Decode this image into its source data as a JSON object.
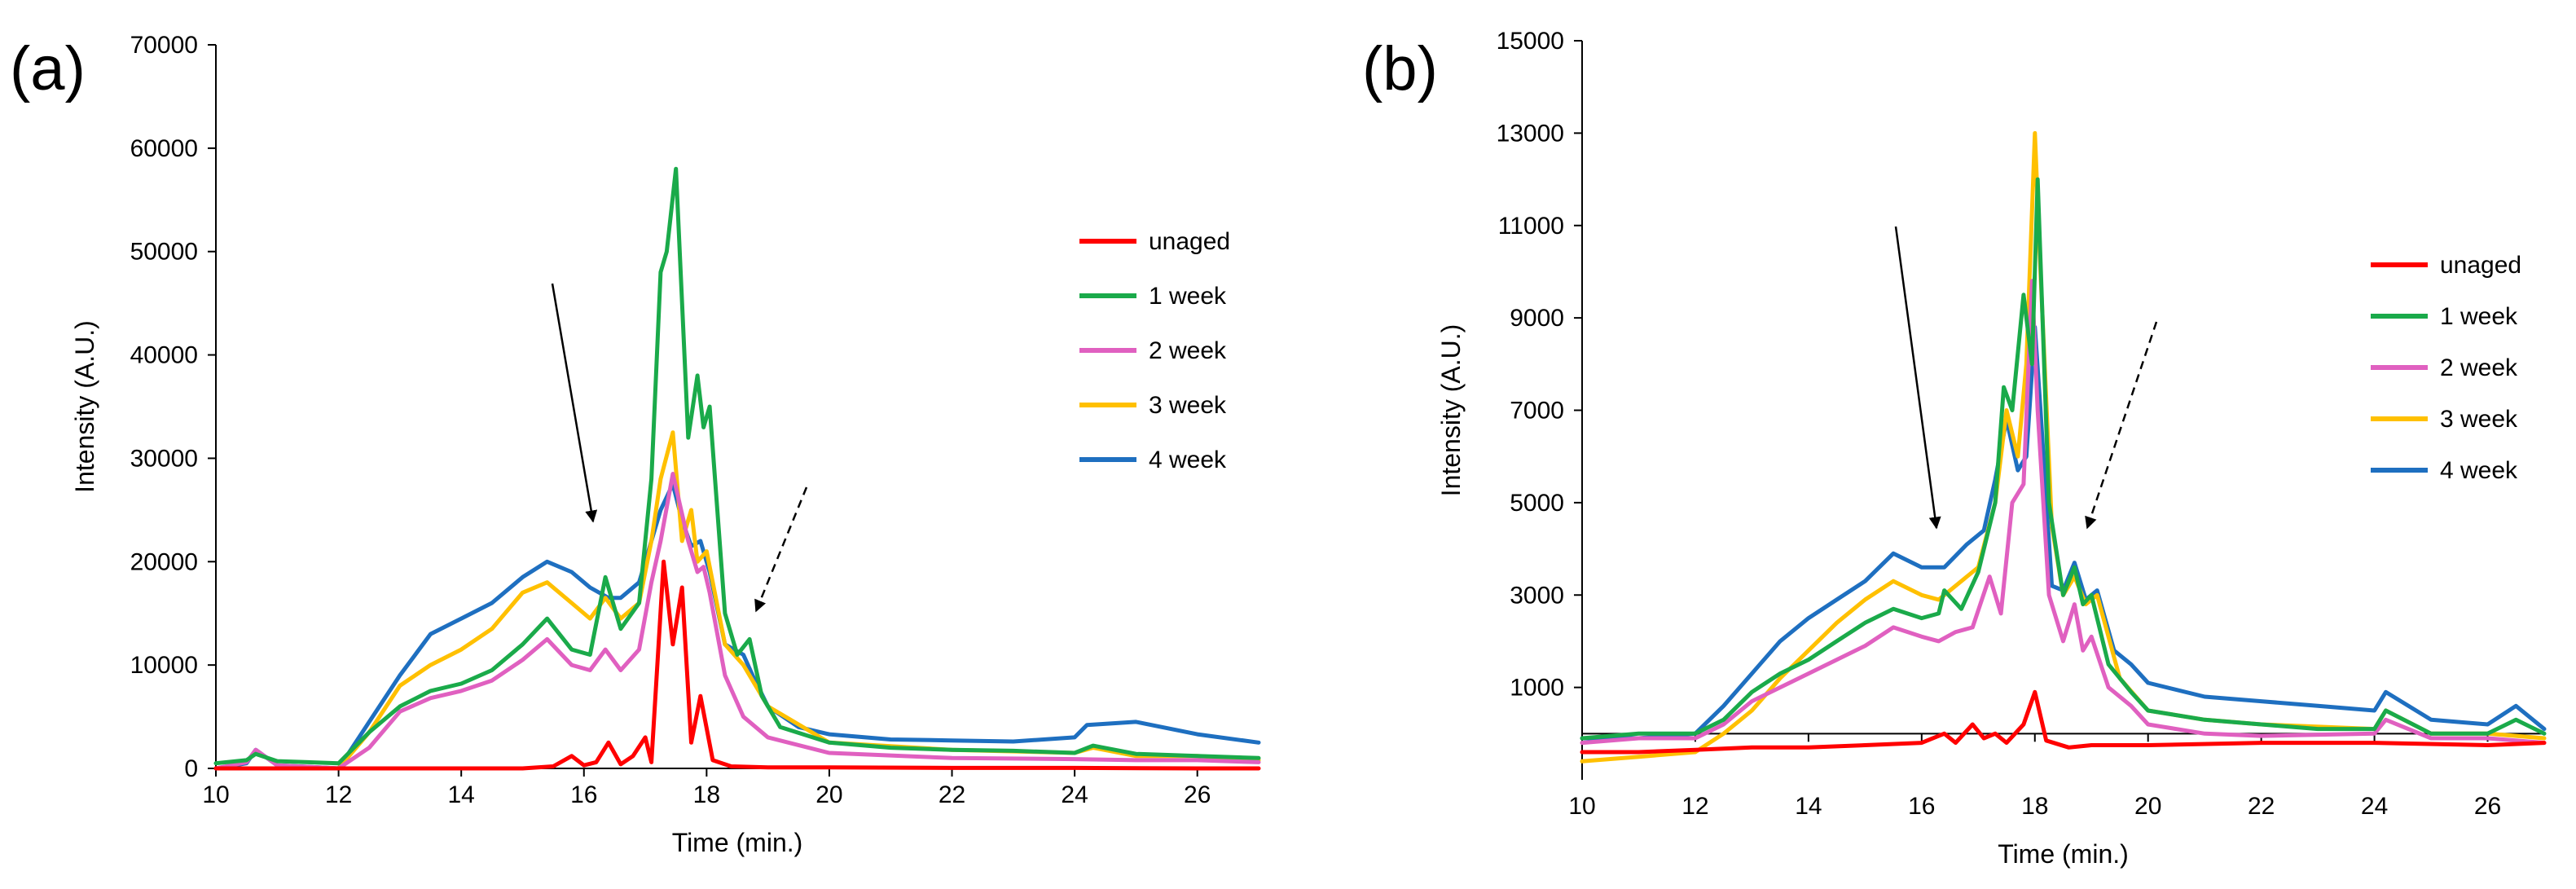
{
  "figure": {
    "legend_position": "right"
  },
  "chart_data": [
    {
      "type": "line",
      "panel_label": "(a)",
      "xlabel": "Time (min.)",
      "ylabel": "Intensity (A.U.)",
      "xlim": [
        10,
        27
      ],
      "ylim": [
        0,
        70000
      ],
      "xticks": [
        10,
        12,
        14,
        16,
        18,
        20,
        22,
        24,
        26
      ],
      "yticks": [
        0,
        10000,
        20000,
        30000,
        40000,
        50000,
        60000,
        70000
      ],
      "grid": false,
      "legend": "right",
      "series": [
        {
          "name": "unaged",
          "color": "#ff0000",
          "x": [
            10,
            11,
            12,
            13,
            14,
            15,
            15.5,
            15.8,
            16.0,
            16.2,
            16.4,
            16.6,
            16.8,
            17.0,
            17.1,
            17.3,
            17.45,
            17.6,
            17.75,
            17.9,
            18.1,
            18.4,
            19,
            20,
            22,
            24,
            26,
            27
          ],
          "y": [
            0,
            0,
            0,
            0,
            0,
            0,
            200,
            1200,
            300,
            600,
            2500,
            400,
            1200,
            3000,
            600,
            20000,
            12000,
            17500,
            2500,
            7000,
            800,
            200,
            100,
            100,
            50,
            50,
            0,
            0
          ]
        },
        {
          "name": "1 week",
          "color": "#1aaa4a",
          "x": [
            10,
            10.5,
            10.65,
            11,
            12,
            12.5,
            13,
            13.5,
            14,
            14.5,
            15,
            15.4,
            15.8,
            16.1,
            16.35,
            16.6,
            16.9,
            17.1,
            17.25,
            17.35,
            17.5,
            17.7,
            17.85,
            17.95,
            18.05,
            18.3,
            18.5,
            18.7,
            18.9,
            19.2,
            20,
            21,
            22,
            23,
            24,
            24.3,
            25,
            26,
            27
          ],
          "y": [
            500,
            800,
            1400,
            700,
            500,
            3500,
            6000,
            7500,
            8200,
            9500,
            12000,
            14500,
            11500,
            11000,
            18500,
            13500,
            16000,
            28000,
            48000,
            50000,
            58000,
            32000,
            38000,
            33000,
            35000,
            15000,
            11000,
            12500,
            7000,
            4000,
            2500,
            2000,
            1800,
            1700,
            1500,
            2200,
            1400,
            1200,
            1000
          ]
        },
        {
          "name": "2 week",
          "color": "#e060c0",
          "x": [
            10,
            10.5,
            10.65,
            11,
            12,
            12.5,
            13,
            13.5,
            14,
            14.5,
            15,
            15.4,
            15.8,
            16.1,
            16.35,
            16.6,
            16.9,
            17.1,
            17.25,
            17.45,
            17.7,
            17.85,
            17.95,
            18.05,
            18.3,
            18.6,
            19,
            20,
            22,
            24,
            25,
            26,
            27
          ],
          "y": [
            0,
            600,
            1800,
            300,
            0,
            2000,
            5500,
            6800,
            7500,
            8500,
            10500,
            12500,
            10000,
            9500,
            11500,
            9500,
            11500,
            18000,
            22000,
            28500,
            22000,
            19000,
            19500,
            17000,
            9000,
            5000,
            3000,
            1500,
            1000,
            900,
            800,
            800,
            600
          ]
        },
        {
          "name": "3 week",
          "color": "#ffc000",
          "x": [
            10,
            11,
            12,
            12.5,
            13,
            13.5,
            14,
            14.5,
            15,
            15.4,
            15.8,
            16.1,
            16.35,
            16.6,
            16.9,
            17.1,
            17.25,
            17.45,
            17.6,
            17.75,
            17.85,
            18.0,
            18.3,
            18.6,
            19,
            20,
            22,
            24,
            24.3,
            25,
            26,
            27
          ],
          "y": [
            0,
            0,
            0,
            3500,
            8000,
            10000,
            11500,
            13500,
            17000,
            18000,
            16000,
            14500,
            16500,
            14500,
            16000,
            22000,
            28000,
            32500,
            22000,
            25000,
            20000,
            21000,
            12000,
            10000,
            6000,
            2500,
            1800,
            1500,
            2000,
            1200,
            1200,
            800
          ]
        },
        {
          "name": "4 week",
          "color": "#1e6fc0",
          "x": [
            10,
            10.5,
            10.65,
            11,
            12,
            12.5,
            13,
            13.5,
            14,
            14.5,
            15,
            15.4,
            15.8,
            16.1,
            16.4,
            16.6,
            16.9,
            17.1,
            17.25,
            17.45,
            17.6,
            17.75,
            17.9,
            18.05,
            18.3,
            18.6,
            18.75,
            19,
            19.5,
            20,
            21,
            22,
            23,
            24,
            24.2,
            25,
            26,
            27
          ],
          "y": [
            0,
            500,
            1800,
            300,
            0,
            4500,
            9000,
            13000,
            14500,
            16000,
            18500,
            20000,
            19000,
            17500,
            16500,
            16500,
            18000,
            22000,
            25000,
            27500,
            24000,
            21500,
            22000,
            19000,
            12000,
            11000,
            9000,
            6000,
            4000,
            3300,
            2800,
            2700,
            2600,
            3000,
            4200,
            4500,
            3300,
            2500
          ]
        }
      ]
    },
    {
      "type": "line",
      "panel_label": "(b)",
      "xlabel": "Time (min.)",
      "ylabel": "Intensity (A.U.)",
      "xlim": [
        10,
        27
      ],
      "ylim": [
        -1000,
        15000
      ],
      "x_axis_crosses_at": 0,
      "xticks": [
        10,
        12,
        14,
        16,
        18,
        20,
        22,
        24,
        26
      ],
      "xtick_labels": [
        "10",
        "12",
        "14",
        "16",
        "18",
        "20",
        "22",
        "24",
        "26"
      ],
      "yticks": [
        1000,
        3000,
        5000,
        7000,
        9000,
        11000,
        13000,
        15000
      ],
      "grid": false,
      "legend": "right",
      "series": [
        {
          "name": "unaged",
          "color": "#ff0000",
          "x": [
            10,
            11,
            12,
            13,
            14,
            15,
            16,
            16.4,
            16.6,
            16.9,
            17.1,
            17.3,
            17.5,
            17.8,
            18.0,
            18.2,
            18.6,
            19,
            20,
            22,
            24,
            26,
            27
          ],
          "y": [
            -400,
            -400,
            -350,
            -300,
            -300,
            -250,
            -200,
            0,
            -200,
            200,
            -100,
            0,
            -200,
            200,
            900,
            -150,
            -300,
            -250,
            -250,
            -200,
            -200,
            -250,
            -200
          ]
        },
        {
          "name": "1 week",
          "color": "#1aaa4a",
          "x": [
            10,
            11,
            12,
            12.5,
            13,
            13.5,
            14,
            14.5,
            15,
            15.5,
            16,
            16.3,
            16.4,
            16.7,
            17,
            17.3,
            17.45,
            17.6,
            17.8,
            17.95,
            18.05,
            18.25,
            18.5,
            18.7,
            18.85,
            19.0,
            19.3,
            19.7,
            20,
            21,
            22,
            23,
            24,
            24.2,
            25,
            26,
            26.5,
            27
          ],
          "y": [
            -100,
            0,
            0,
            300,
            900,
            1300,
            1600,
            2000,
            2400,
            2700,
            2500,
            2600,
            3100,
            2700,
            3500,
            5000,
            7500,
            7000,
            9500,
            8000,
            12000,
            5000,
            3000,
            3600,
            2800,
            3000,
            1500,
            900,
            500,
            300,
            200,
            100,
            100,
            500,
            0,
            0,
            300,
            0
          ]
        },
        {
          "name": "2 week",
          "color": "#e060c0",
          "x": [
            10,
            11,
            12,
            12.5,
            13,
            13.5,
            14,
            14.5,
            15,
            15.5,
            16,
            16.3,
            16.6,
            16.9,
            17.2,
            17.4,
            17.6,
            17.8,
            17.95,
            18.05,
            18.25,
            18.5,
            18.7,
            18.85,
            19.0,
            19.3,
            19.7,
            20,
            21,
            22,
            24,
            24.2,
            25,
            26,
            27
          ],
          "y": [
            -200,
            -100,
            -100,
            200,
            700,
            1000,
            1300,
            1600,
            1900,
            2300,
            2100,
            2000,
            2200,
            2300,
            3400,
            2600,
            5000,
            5400,
            9800,
            7000,
            3000,
            2000,
            2800,
            1800,
            2100,
            1000,
            600,
            200,
            0,
            -50,
            0,
            300,
            -100,
            -100,
            -200
          ]
        },
        {
          "name": "3 week",
          "color": "#ffc000",
          "x": [
            10,
            11,
            12,
            12.5,
            13,
            13.5,
            14,
            14.5,
            15,
            15.5,
            16,
            16.3,
            16.6,
            17,
            17.3,
            17.5,
            17.7,
            17.85,
            18.0,
            18.1,
            18.3,
            18.5,
            18.7,
            18.9,
            19.1,
            19.5,
            20,
            21,
            22,
            24,
            24.2,
            25,
            26,
            27
          ],
          "y": [
            -600,
            -500,
            -400,
            0,
            500,
            1200,
            1800,
            2400,
            2900,
            3300,
            3000,
            2900,
            3200,
            3600,
            5000,
            7000,
            6000,
            8000,
            13000,
            10000,
            4500,
            3000,
            3400,
            2800,
            3000,
            1200,
            500,
            300,
            200,
            100,
            500,
            0,
            0,
            -100
          ]
        },
        {
          "name": "4 week",
          "color": "#1e6fc0",
          "x": [
            10,
            11,
            12,
            12.5,
            13,
            13.5,
            14,
            14.5,
            15,
            15.5,
            16,
            16.4,
            16.8,
            17.1,
            17.3,
            17.5,
            17.7,
            17.85,
            18.0,
            18.1,
            18.3,
            18.5,
            18.7,
            18.9,
            19.1,
            19.4,
            19.7,
            20,
            21,
            22,
            23,
            24,
            24.2,
            25,
            26,
            26.5,
            27
          ],
          "y": [
            -100,
            -100,
            0,
            600,
            1300,
            2000,
            2500,
            2900,
            3300,
            3900,
            3600,
            3600,
            4100,
            4400,
            5500,
            6800,
            5700,
            6000,
            8800,
            7000,
            3200,
            3100,
            3700,
            2900,
            3100,
            1800,
            1500,
            1100,
            800,
            700,
            600,
            500,
            900,
            300,
            200,
            600,
            100
          ]
        }
      ]
    }
  ]
}
